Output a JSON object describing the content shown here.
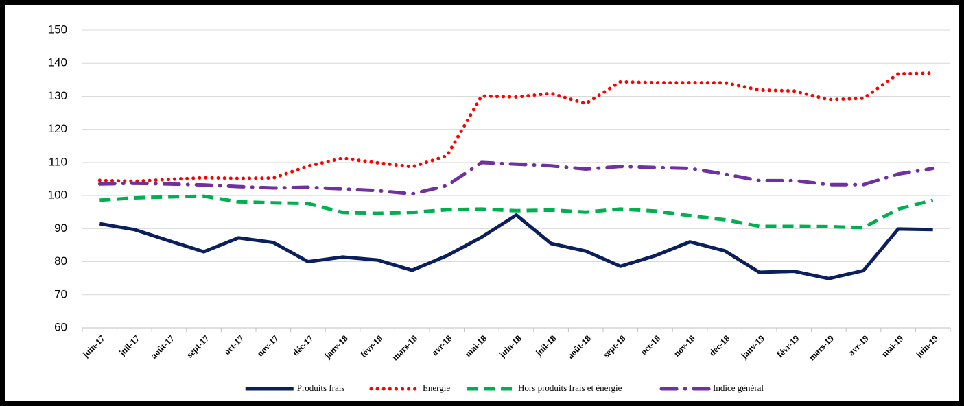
{
  "chart_data": {
    "type": "line",
    "categories": [
      "juin-17",
      "juil-17",
      "août-17",
      "sept-17",
      "oct-17",
      "nov-17",
      "déc-17",
      "janv-18",
      "févr-18",
      "mars-18",
      "avr-18",
      "mai-18",
      "juin-18",
      "juil-18",
      "août-18",
      "sept-18",
      "oct-18",
      "nov-18",
      "déc-18",
      "janv-19",
      "févr-19",
      "mars-19",
      "avr-19",
      "mai-19",
      "juin-19"
    ],
    "series": [
      {
        "name": "Produits frais",
        "color": "#0b1f5c",
        "style": "solid",
        "values": [
          91.5,
          89.7,
          86.3,
          83.0,
          87.2,
          85.8,
          80.0,
          81.4,
          80.5,
          77.4,
          81.8,
          87.4,
          94.1,
          85.5,
          83.2,
          78.6,
          81.8,
          86.0,
          83.3,
          76.8,
          77.1,
          74.9,
          77.3,
          89.9,
          89.7
        ]
      },
      {
        "name": "Energie",
        "color": "#ff0000",
        "style": "dotted",
        "values": [
          104.6,
          104.3,
          104.9,
          105.4,
          105.2,
          105.3,
          108.9,
          111.3,
          109.9,
          108.7,
          112.0,
          130.1,
          129.8,
          130.9,
          127.8,
          134.4,
          134.1,
          134.1,
          134.1,
          131.9,
          131.6,
          129.0,
          129.4,
          136.8,
          137.0
        ]
      },
      {
        "name": "Hors produits frais et énergie",
        "color": "#00b050",
        "style": "dashed",
        "values": [
          98.6,
          99.3,
          99.6,
          99.8,
          98.1,
          97.8,
          97.6,
          94.9,
          94.6,
          94.9,
          95.7,
          95.9,
          95.4,
          95.6,
          95.0,
          95.9,
          95.3,
          93.9,
          92.7,
          90.7,
          90.7,
          90.6,
          90.3,
          95.9,
          98.6
        ]
      },
      {
        "name": "Indice général",
        "color": "#7030a0",
        "style": "dashdot",
        "values": [
          103.5,
          103.7,
          103.5,
          103.2,
          102.7,
          102.3,
          102.5,
          102.0,
          101.5,
          100.5,
          103.0,
          110.0,
          109.5,
          109.0,
          108.0,
          108.8,
          108.5,
          108.2,
          106.5,
          104.5,
          104.5,
          103.3,
          103.3,
          106.5,
          108.2
        ]
      }
    ],
    "ylim": [
      60,
      150
    ],
    "yticks": [
      60,
      70,
      80,
      90,
      100,
      110,
      120,
      130,
      140,
      150
    ],
    "grid": true,
    "legend": "bottom"
  }
}
